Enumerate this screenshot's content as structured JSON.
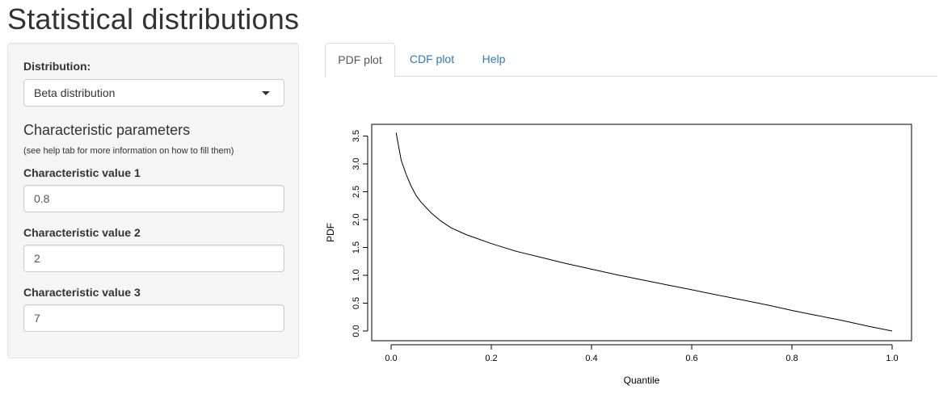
{
  "app": {
    "title": "Statistical distributions"
  },
  "sidebar": {
    "distribution_label": "Distribution:",
    "distribution_value": "Beta distribution",
    "section_title": "Characteristic parameters",
    "help_note": "(see help tab for more information on how to fill them)",
    "params": [
      {
        "label": "Characteristic value 1",
        "value": "0.8"
      },
      {
        "label": "Characteristic value 2",
        "value": "2"
      },
      {
        "label": "Characteristic value 3",
        "value": "7"
      }
    ]
  },
  "tabs": [
    {
      "label": "PDF plot",
      "active": true
    },
    {
      "label": "CDF plot",
      "active": false
    },
    {
      "label": "Help",
      "active": false
    }
  ],
  "colors": {
    "link": "#337ab7",
    "panel": "#f5f5f5",
    "line": "#000000"
  },
  "icons": {
    "dropdown": "caret-down-icon"
  },
  "chart_data": {
    "type": "line",
    "xlabel": "Quantile",
    "ylabel": "PDF",
    "xlim": [
      0.0,
      1.0
    ],
    "ylim": [
      0.0,
      3.6
    ],
    "xticks": [
      "0.0",
      "0.2",
      "0.4",
      "0.6",
      "0.8",
      "1.0"
    ],
    "yticks": [
      "0.0",
      "0.5",
      "1.0",
      "1.5",
      "2.0",
      "2.5",
      "3.0",
      "3.5"
    ],
    "grid": false,
    "series": [
      {
        "x": [
          0.01,
          0.02,
          0.03,
          0.04,
          0.05,
          0.06,
          0.08,
          0.1,
          0.12,
          0.15,
          0.2,
          0.25,
          0.3,
          0.35,
          0.4,
          0.45,
          0.5,
          0.55,
          0.6,
          0.65,
          0.7,
          0.75,
          0.8,
          0.85,
          0.9,
          0.95,
          1.0
        ],
        "y": [
          3.56,
          3.07,
          2.81,
          2.6,
          2.43,
          2.31,
          2.12,
          1.97,
          1.85,
          1.73,
          1.57,
          1.43,
          1.32,
          1.21,
          1.11,
          1.01,
          0.92,
          0.83,
          0.74,
          0.65,
          0.56,
          0.47,
          0.37,
          0.28,
          0.19,
          0.09,
          0.0
        ]
      }
    ]
  }
}
